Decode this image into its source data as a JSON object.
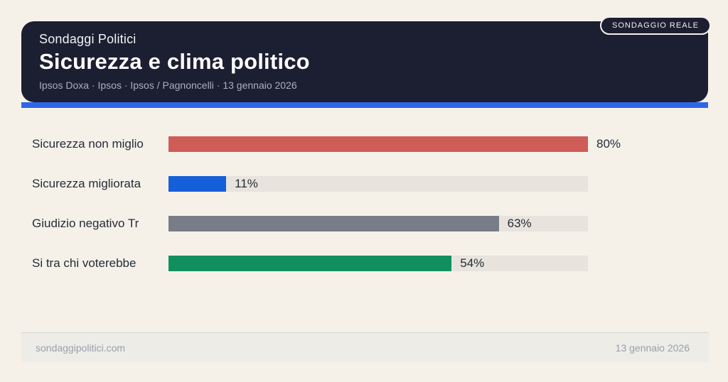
{
  "header": {
    "kicker": "Sondaggi Politici",
    "title": "Sicurezza e clima politico",
    "subtitle": "Ipsos Doxa · Ipsos · Ipsos / Pagnoncelli · 13 gennaio 2026",
    "badge": "SONDAGGIO REALE"
  },
  "chart_data": {
    "type": "bar",
    "orientation": "horizontal",
    "title": "Sicurezza e clima politico",
    "categories": [
      "Sicurezza non miglio",
      "Sicurezza migliorata",
      "Giudizio negativo Tr",
      "Si tra chi voterebbe"
    ],
    "values": [
      80,
      11,
      63,
      54
    ],
    "value_labels": [
      "80%",
      "11%",
      "63%",
      "54%"
    ],
    "unit": "%",
    "max_value": 80,
    "bar_colors": [
      "#d05c57",
      "#155fd8",
      "#787d87",
      "#11905e"
    ],
    "track_color": "#e8e4dd",
    "grid": false,
    "legend": "none",
    "value_label_position": "end-of-bar"
  },
  "footer": {
    "site": "sondaggipolitici.com",
    "date": "13 gennaio 2026"
  },
  "colors": {
    "page_bg": "#f5f1e9",
    "header_bg": "#1c1e31",
    "accent_rule": "#2f66e9",
    "subtitle_text": "#aab0bf",
    "label_text": "#262b37",
    "footer_bg": "#edece7",
    "footer_text": "#9aa0aa"
  }
}
